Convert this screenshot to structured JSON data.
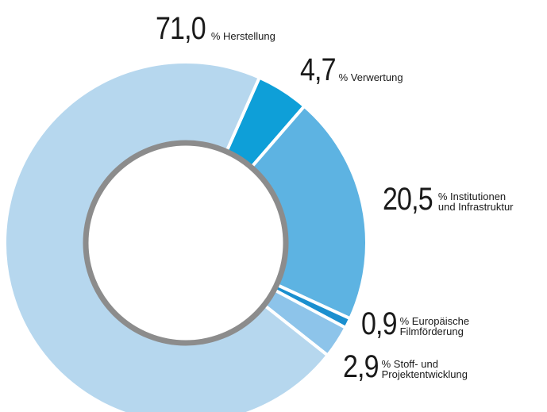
{
  "chart_data": {
    "type": "donut",
    "categories": [
      "Verwertung",
      "Institutionen\nund Infrastruktur",
      "Europäische\nFilmförderung",
      "Stoff- und\nProjektentwicklung",
      "Herstellung"
    ],
    "values": [
      4.7,
      20.5,
      0.9,
      2.9,
      71.0
    ],
    "value_labels": [
      "4,7",
      "20,5",
      "0,9",
      "2,9",
      "71,0"
    ],
    "unit": "%",
    "colors": [
      "#0e9fd8",
      "#5db3e2",
      "#1a8fcf",
      "#8dc4ea",
      "#b6d7ee"
    ]
  }
}
